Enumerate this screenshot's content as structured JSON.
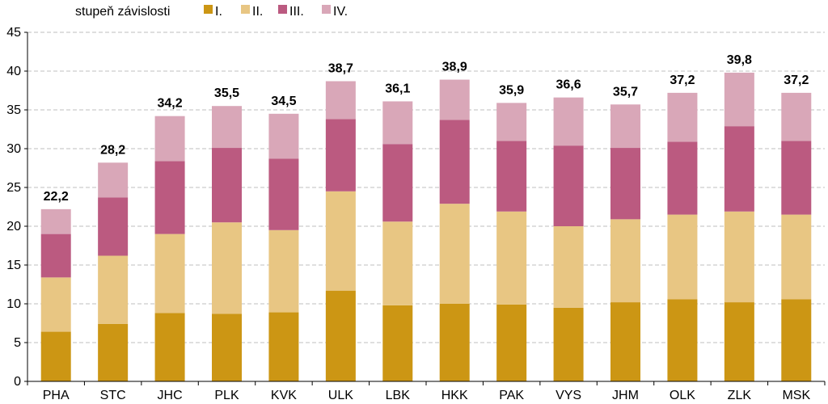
{
  "chart_data": {
    "type": "bar",
    "stacked": true,
    "legend_title": "stupeň závislosti",
    "legend_position": "top-left",
    "grid": true,
    "ylim": [
      0,
      45
    ],
    "yticks": [
      "0",
      "5",
      "10",
      "15",
      "20",
      "25",
      "30",
      "35",
      "40",
      "45"
    ],
    "categories": [
      "PHA",
      "STC",
      "JHC",
      "PLK",
      "KVK",
      "ULK",
      "LBK",
      "HKK",
      "PAK",
      "VYS",
      "JHM",
      "OLK",
      "ZLK",
      "MSK"
    ],
    "totals": [
      "22,2",
      "28,2",
      "34,2",
      "35,5",
      "34,5",
      "38,7",
      "36,1",
      "38,9",
      "35,9",
      "36,6",
      "35,7",
      "37,2",
      "39,8",
      "37,2"
    ],
    "series": [
      {
        "name": "I.",
        "color": "#CC9614",
        "values": [
          6.4,
          7.4,
          8.8,
          8.7,
          8.9,
          11.7,
          9.8,
          10.0,
          9.9,
          9.5,
          10.2,
          10.6,
          10.2,
          10.6
        ]
      },
      {
        "name": "II.",
        "color": "#E8C683",
        "values": [
          7.0,
          8.8,
          10.2,
          11.8,
          10.6,
          12.8,
          10.8,
          12.9,
          12.0,
          10.5,
          10.7,
          10.9,
          11.7,
          10.9
        ]
      },
      {
        "name": "III.",
        "color": "#BB5A80",
        "values": [
          5.6,
          7.5,
          9.4,
          9.6,
          9.2,
          9.3,
          10.0,
          10.8,
          9.1,
          10.4,
          9.2,
          9.4,
          11.0,
          9.5
        ]
      },
      {
        "name": "IV.",
        "color": "#D9A7B8",
        "values": [
          3.2,
          4.5,
          5.8,
          5.4,
          5.8,
          4.9,
          5.5,
          5.2,
          4.9,
          6.2,
          5.6,
          6.3,
          6.9,
          6.2
        ]
      }
    ]
  }
}
